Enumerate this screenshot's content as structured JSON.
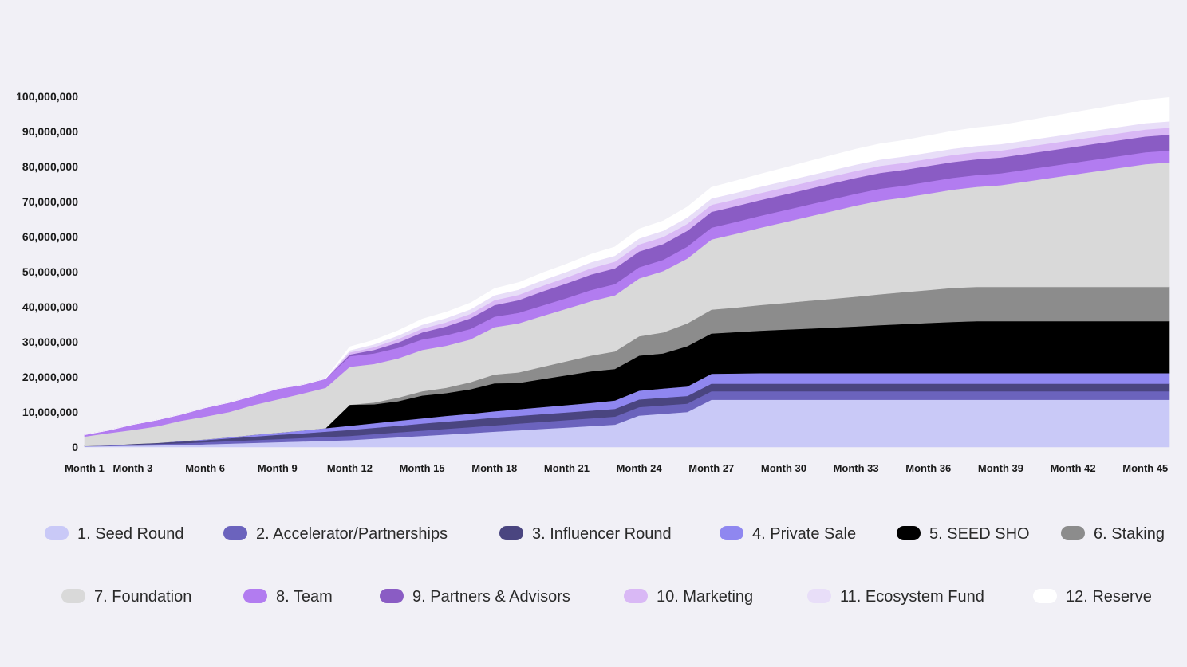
{
  "chart_data": {
    "type": "area",
    "stacked": true,
    "title": "",
    "xlabel": "",
    "ylabel": "",
    "ylim": [
      0,
      100000000
    ],
    "yticks": [
      0,
      10000000,
      20000000,
      30000000,
      40000000,
      50000000,
      60000000,
      70000000,
      80000000,
      90000000,
      100000000
    ],
    "ytick_labels": [
      "0",
      "10,000,000",
      "20,000,000",
      "30,000,000",
      "40,000,000",
      "50,000,000",
      "60,000,000",
      "70,000,000",
      "80,000,000",
      "90,000,000",
      "100,000,000"
    ],
    "xlim": [
      1,
      46
    ],
    "xticks": [
      1,
      3,
      6,
      9,
      12,
      15,
      18,
      21,
      24,
      27,
      30,
      33,
      36,
      39,
      42,
      45
    ],
    "xtick_labels": [
      "Month 1",
      "Month 3",
      "Month 6",
      "Month 9",
      "Month 12",
      "Month 15",
      "Month 18",
      "Month 21",
      "Month 24",
      "Month 27",
      "Month 30",
      "Month 33",
      "Month 36",
      "Month 39",
      "Month 42",
      "Month 45"
    ],
    "x": [
      1,
      2,
      3,
      4,
      5,
      6,
      7,
      8,
      9,
      10,
      11,
      12,
      13,
      14,
      15,
      16,
      17,
      18,
      19,
      20,
      21,
      22,
      23,
      24,
      25,
      26,
      27,
      28,
      29,
      30,
      31,
      32,
      33,
      34,
      35,
      36,
      37,
      38,
      39,
      40,
      41,
      42,
      43,
      44,
      45,
      46
    ],
    "legend_position": "bottom",
    "series": [
      {
        "name": "1. Seed Round",
        "color": "#c9c9f7",
        "values": [
          0.2,
          0.3,
          0.4,
          0.5,
          0.6,
          0.8,
          1.0,
          1.2,
          1.4,
          1.6,
          1.8,
          2.0,
          2.4,
          2.8,
          3.2,
          3.6,
          4.0,
          4.4,
          4.8,
          5.2,
          5.6,
          6.0,
          6.4,
          9.0,
          9.5,
          10.0,
          13.5,
          13.5,
          13.5,
          13.5,
          13.5,
          13.5,
          13.5,
          13.5,
          13.5,
          13.5,
          13.5,
          13.5,
          13.5,
          13.5,
          13.5,
          13.5,
          13.5,
          13.5,
          13.5,
          13.5
        ]
      },
      {
        "name": "2. Accelerator/Partnerships",
        "color": "#6b63bd",
        "values": [
          0.1,
          0.2,
          0.3,
          0.4,
          0.5,
          0.6,
          0.7,
          0.8,
          0.9,
          1.0,
          1.1,
          1.2,
          1.3,
          1.4,
          1.5,
          1.6,
          1.7,
          1.8,
          1.9,
          2.0,
          2.1,
          2.2,
          2.3,
          2.4,
          2.4,
          2.4,
          2.4,
          2.4,
          2.4,
          2.4,
          2.4,
          2.4,
          2.4,
          2.4,
          2.4,
          2.4,
          2.4,
          2.4,
          2.4,
          2.4,
          2.4,
          2.4,
          2.4,
          2.4,
          2.4,
          2.4
        ]
      },
      {
        "name": "3. Influencer Round",
        "color": "#4a4580",
        "values": [
          0.0,
          0.0,
          0.2,
          0.3,
          0.5,
          0.6,
          0.8,
          1.0,
          1.2,
          1.3,
          1.5,
          1.7,
          1.8,
          1.9,
          2.0,
          2.1,
          2.1,
          2.2,
          2.2,
          2.2,
          2.2,
          2.2,
          2.2,
          2.2,
          2.2,
          2.2,
          2.2,
          2.2,
          2.2,
          2.2,
          2.2,
          2.2,
          2.2,
          2.2,
          2.2,
          2.2,
          2.2,
          2.2,
          2.2,
          2.2,
          2.2,
          2.2,
          2.2,
          2.2,
          2.2,
          2.2
        ]
      },
      {
        "name": "4. Private Sale",
        "color": "#8f87f0",
        "values": [
          0.0,
          0.0,
          0.0,
          0.0,
          0.1,
          0.2,
          0.3,
          0.5,
          0.6,
          0.8,
          1.0,
          1.2,
          1.3,
          1.4,
          1.5,
          1.6,
          1.7,
          1.8,
          1.9,
          2.0,
          2.1,
          2.2,
          2.4,
          2.5,
          2.6,
          2.7,
          2.8,
          2.9,
          3.0,
          3.0,
          3.0,
          3.0,
          3.0,
          3.0,
          3.0,
          3.0,
          3.0,
          3.0,
          3.0,
          3.0,
          3.0,
          3.0,
          3.0,
          3.0,
          3.0,
          3.0
        ]
      },
      {
        "name": "5. SEED SHO",
        "color": "#000000",
        "values": [
          0.0,
          0.0,
          0.0,
          0.0,
          0.0,
          0.0,
          0.0,
          0.0,
          0.0,
          0.0,
          0.0,
          6.0,
          5.4,
          5.6,
          6.5,
          6.5,
          7.0,
          8.0,
          7.5,
          8.0,
          8.5,
          9.0,
          9.0,
          10.0,
          10.0,
          11.5,
          11.5,
          11.8,
          12.1,
          12.4,
          12.7,
          13.0,
          13.3,
          13.7,
          14.0,
          14.3,
          14.6,
          14.8,
          14.8,
          14.8,
          14.8,
          14.8,
          14.8,
          14.8,
          14.8,
          14.8
        ]
      },
      {
        "name": "6. Staking",
        "color": "#8c8c8c",
        "values": [
          0.0,
          0.0,
          0.0,
          0.0,
          0.0,
          0.0,
          0.0,
          0.0,
          0.0,
          0.0,
          0.0,
          0.0,
          0.5,
          1.0,
          1.2,
          1.5,
          2.0,
          2.5,
          3.0,
          3.5,
          4.0,
          4.5,
          5.0,
          5.5,
          6.0,
          6.5,
          6.8,
          7.0,
          7.3,
          7.6,
          7.9,
          8.2,
          8.5,
          8.8,
          9.1,
          9.4,
          9.7,
          9.8,
          9.8,
          9.8,
          9.8,
          9.8,
          9.8,
          9.8,
          9.8,
          9.8
        ]
      },
      {
        "name": "7. Foundation",
        "color": "#d9d9d9",
        "values": [
          2.7,
          3.5,
          4.0,
          4.7,
          5.8,
          6.5,
          7.2,
          8.5,
          9.5,
          10.5,
          11.5,
          10.8,
          11.0,
          11.2,
          11.8,
          12.0,
          12.2,
          13.5,
          14.0,
          14.5,
          15.0,
          15.5,
          16.0,
          16.5,
          17.5,
          18.5,
          20.0,
          21.0,
          22.0,
          23.0,
          24.0,
          25.0,
          26.0,
          26.7,
          27.0,
          27.5,
          28.0,
          28.5,
          29.0,
          30.0,
          31.0,
          32.0,
          33.0,
          34.0,
          35.0,
          35.5
        ]
      },
      {
        "name": "8. Team",
        "color": "#b27cf0",
        "values": [
          0.5,
          0.8,
          1.5,
          1.8,
          1.8,
          2.5,
          2.7,
          2.6,
          3.0,
          2.5,
          2.6,
          3.0,
          3.0,
          3.0,
          3.0,
          3.0,
          3.0,
          3.0,
          3.0,
          3.0,
          3.0,
          3.2,
          3.2,
          3.2,
          3.2,
          3.4,
          3.4,
          3.4,
          3.4,
          3.4,
          3.4,
          3.4,
          3.4,
          3.4,
          3.4,
          3.4,
          3.4,
          3.4,
          3.4,
          3.4,
          3.4,
          3.4,
          3.4,
          3.4,
          3.4,
          3.4
        ]
      },
      {
        "name": "9. Partners & Advisors",
        "color": "#8a5cc4",
        "values": [
          0.0,
          0.0,
          0.0,
          0.0,
          0.0,
          0.0,
          0.0,
          0.0,
          0.0,
          0.0,
          0.0,
          0.5,
          1.0,
          1.5,
          2.0,
          2.5,
          3.0,
          3.3,
          3.6,
          4.0,
          4.2,
          4.4,
          4.5,
          4.5,
          4.5,
          4.5,
          4.5,
          4.5,
          4.5,
          4.5,
          4.5,
          4.5,
          4.5,
          4.5,
          4.5,
          4.5,
          4.5,
          4.5,
          4.5,
          4.5,
          4.5,
          4.5,
          4.5,
          4.5,
          4.5,
          4.5
        ]
      },
      {
        "name": "10. Marketing",
        "color": "#d9b8f5",
        "values": [
          0.0,
          0.0,
          0.0,
          0.0,
          0.0,
          0.0,
          0.0,
          0.0,
          0.0,
          0.0,
          0.0,
          0.6,
          0.8,
          1.0,
          1.1,
          1.2,
          1.3,
          1.4,
          1.5,
          1.6,
          1.7,
          1.8,
          1.9,
          2.0,
          2.0,
          2.0,
          2.0,
          2.0,
          2.0,
          2.0,
          2.0,
          2.0,
          2.0,
          2.0,
          2.0,
          2.0,
          2.0,
          2.0,
          2.0,
          2.0,
          2.0,
          2.0,
          2.0,
          2.0,
          2.0,
          2.0
        ]
      },
      {
        "name": "11. Ecosystem Fund",
        "color": "#e8def8",
        "values": [
          0.0,
          0.0,
          0.0,
          0.0,
          0.0,
          0.0,
          0.0,
          0.0,
          0.0,
          0.0,
          0.0,
          0.6,
          0.8,
          1.0,
          1.1,
          1.2,
          1.3,
          1.4,
          1.5,
          1.6,
          1.6,
          1.7,
          1.7,
          1.7,
          1.8,
          1.8,
          1.8,
          1.8,
          1.8,
          1.8,
          1.8,
          1.8,
          1.8,
          1.8,
          1.8,
          1.8,
          1.8,
          1.8,
          1.8,
          1.8,
          1.8,
          1.8,
          1.8,
          1.8,
          1.8,
          1.8
        ]
      },
      {
        "name": "12. Reserve",
        "color": "#ffffff",
        "values": [
          0.0,
          0.0,
          0.0,
          0.0,
          0.0,
          0.0,
          0.0,
          0.0,
          0.0,
          0.0,
          0.0,
          1.0,
          1.2,
          1.4,
          1.6,
          1.7,
          1.8,
          1.9,
          2.0,
          2.1,
          2.2,
          2.3,
          2.5,
          2.7,
          2.8,
          3.0,
          3.2,
          3.4,
          3.6,
          3.8,
          4.0,
          4.2,
          4.4,
          4.5,
          4.6,
          4.8,
          5.0,
          5.2,
          5.4,
          5.6,
          5.8,
          6.0,
          6.2,
          6.4,
          6.6,
          6.8
        ]
      }
    ],
    "value_units": "millions"
  }
}
